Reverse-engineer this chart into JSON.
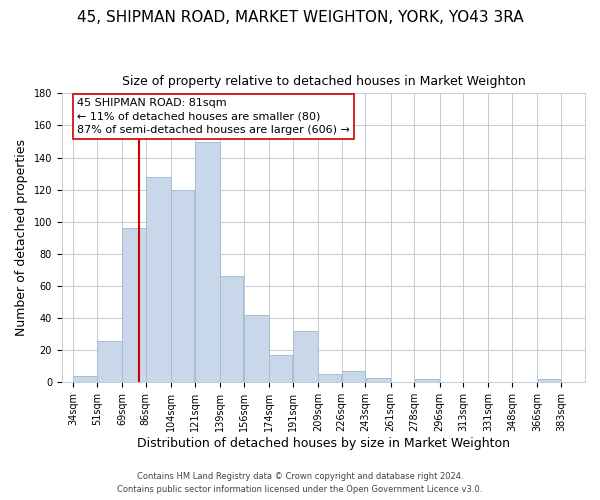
{
  "title": "45, SHIPMAN ROAD, MARKET WEIGHTON, YORK, YO43 3RA",
  "subtitle": "Size of property relative to detached houses in Market Weighton",
  "xlabel": "Distribution of detached houses by size in Market Weighton",
  "ylabel": "Number of detached properties",
  "bar_color": "#c8d8ea",
  "bar_edgecolor": "#a8bece",
  "bar_left_edges": [
    34,
    51,
    69,
    86,
    104,
    121,
    139,
    156,
    174,
    191,
    209,
    226,
    243,
    261,
    278,
    296,
    313,
    331,
    348,
    366
  ],
  "bar_widths": [
    17,
    18,
    17,
    18,
    17,
    18,
    17,
    18,
    17,
    18,
    17,
    17,
    18,
    17,
    18,
    17,
    18,
    17,
    18,
    17
  ],
  "bar_heights": [
    4,
    26,
    96,
    128,
    120,
    150,
    66,
    42,
    17,
    32,
    5,
    7,
    3,
    0,
    2,
    0,
    0,
    0,
    0,
    2
  ],
  "x_tick_labels": [
    "34sqm",
    "51sqm",
    "69sqm",
    "86sqm",
    "104sqm",
    "121sqm",
    "139sqm",
    "156sqm",
    "174sqm",
    "191sqm",
    "209sqm",
    "226sqm",
    "243sqm",
    "261sqm",
    "278sqm",
    "296sqm",
    "313sqm",
    "331sqm",
    "348sqm",
    "366sqm",
    "383sqm"
  ],
  "x_tick_positions": [
    34,
    51,
    69,
    86,
    104,
    121,
    139,
    156,
    174,
    191,
    209,
    226,
    243,
    261,
    278,
    296,
    313,
    331,
    348,
    366,
    383
  ],
  "ylim": [
    0,
    180
  ],
  "yticks": [
    0,
    20,
    40,
    60,
    80,
    100,
    120,
    140,
    160,
    180
  ],
  "vline_x": 81,
  "vline_color": "#cc0000",
  "annotation_line1": "45 SHIPMAN ROAD: 81sqm",
  "annotation_line2": "← 11% of detached houses are smaller (80)",
  "annotation_line3": "87% of semi-detached houses are larger (606) →",
  "footer_line1": "Contains HM Land Registry data © Crown copyright and database right 2024.",
  "footer_line2": "Contains public sector information licensed under the Open Government Licence v3.0.",
  "background_color": "#ffffff",
  "grid_color": "#c0ccd8",
  "title_fontsize": 11,
  "subtitle_fontsize": 9,
  "axis_label_fontsize": 9,
  "tick_fontsize": 7,
  "footer_fontsize": 6,
  "annotation_fontsize": 8
}
